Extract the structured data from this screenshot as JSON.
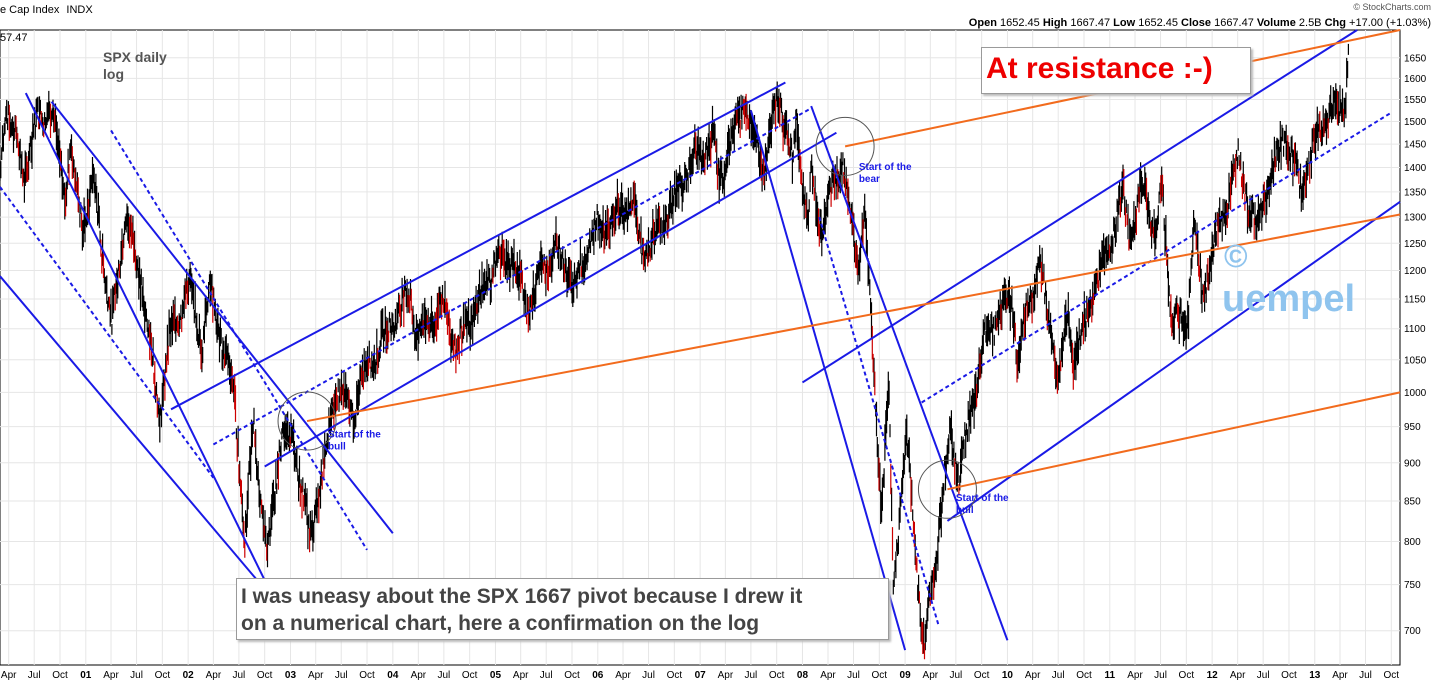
{
  "header": {
    "left_title": "e Cap Index",
    "left_symbol": "INDX",
    "left_value": "57.47",
    "watermark": "© StockCharts.com",
    "ohlc": {
      "open_label": "Open",
      "open": "1652.45",
      "high_label": "High",
      "high": "1667.47",
      "low_label": "Low",
      "low": "1652.45",
      "close_label": "Close",
      "close": "1667.47",
      "volume_label": "Volume",
      "volume": "2.5B",
      "chg_label": "Chg",
      "chg": "+17.00 (+1.03%)"
    }
  },
  "chart_title": {
    "line1": "SPX daily",
    "line2": "log"
  },
  "resistance_callout": "At resistance :-)",
  "bottom_callout": {
    "line1": "I was uneasy about the SPX 1667 pivot because I drew it",
    "line2": "on a numerical chart, here a confirmation on the log"
  },
  "copyright_mark": {
    "symbol": "©",
    "name": "uempel"
  },
  "colors": {
    "channel": "#1a1ae6",
    "resistance": "#f26b1d",
    "callout_red": "#ee0000",
    "watermark": "#8fc4ee",
    "price_bar": "#000000",
    "down_bar": "#cc0000",
    "grid": "#e6e6e6",
    "circle": "#555555"
  },
  "chart_data": {
    "type": "line",
    "title": "SPX daily log",
    "y_scale": "log",
    "ylim": [
      665,
      1720
    ],
    "y_ticks": [
      700,
      750,
      800,
      850,
      900,
      950,
      1000,
      1050,
      1100,
      1150,
      1200,
      1250,
      1300,
      1350,
      1400,
      1450,
      1500,
      1550,
      1600,
      1650
    ],
    "x_range": [
      "2000-03",
      "2013-11"
    ],
    "x_tick_labels": [
      {
        "label": "Apr",
        "date": "2000-04"
      },
      {
        "label": "Jul",
        "date": "2000-07"
      },
      {
        "label": "Oct",
        "date": "2000-10"
      },
      {
        "label": "01",
        "date": "2001-01",
        "year": true
      },
      {
        "label": "Apr",
        "date": "2001-04"
      },
      {
        "label": "Jul",
        "date": "2001-07"
      },
      {
        "label": "Oct",
        "date": "2001-10"
      },
      {
        "label": "02",
        "date": "2002-01",
        "year": true
      },
      {
        "label": "Apr",
        "date": "2002-04"
      },
      {
        "label": "Jul",
        "date": "2002-07"
      },
      {
        "label": "Oct",
        "date": "2002-10"
      },
      {
        "label": "03",
        "date": "2003-01",
        "year": true
      },
      {
        "label": "Apr",
        "date": "2003-04"
      },
      {
        "label": "Jul",
        "date": "2003-07"
      },
      {
        "label": "Oct",
        "date": "2003-10"
      },
      {
        "label": "04",
        "date": "2004-01",
        "year": true
      },
      {
        "label": "Apr",
        "date": "2004-04"
      },
      {
        "label": "Jul",
        "date": "2004-07"
      },
      {
        "label": "Oct",
        "date": "2004-10"
      },
      {
        "label": "05",
        "date": "2005-01",
        "year": true
      },
      {
        "label": "Apr",
        "date": "2005-04"
      },
      {
        "label": "Jul",
        "date": "2005-07"
      },
      {
        "label": "Oct",
        "date": "2005-10"
      },
      {
        "label": "06",
        "date": "2006-01",
        "year": true
      },
      {
        "label": "Apr",
        "date": "2006-04"
      },
      {
        "label": "Jul",
        "date": "2006-07"
      },
      {
        "label": "Oct",
        "date": "2006-10"
      },
      {
        "label": "07",
        "date": "2007-01",
        "year": true
      },
      {
        "label": "Apr",
        "date": "2007-04"
      },
      {
        "label": "Jul",
        "date": "2007-07"
      },
      {
        "label": "Oct",
        "date": "2007-10"
      },
      {
        "label": "08",
        "date": "2008-01",
        "year": true
      },
      {
        "label": "Apr",
        "date": "2008-04"
      },
      {
        "label": "Jul",
        "date": "2008-07"
      },
      {
        "label": "Oct",
        "date": "2008-10"
      },
      {
        "label": "09",
        "date": "2009-01",
        "year": true
      },
      {
        "label": "Apr",
        "date": "2009-04"
      },
      {
        "label": "Jul",
        "date": "2009-07"
      },
      {
        "label": "Oct",
        "date": "2009-10"
      },
      {
        "label": "10",
        "date": "2010-01",
        "year": true
      },
      {
        "label": "Apr",
        "date": "2010-04"
      },
      {
        "label": "Jul",
        "date": "2010-07"
      },
      {
        "label": "Oct",
        "date": "2010-10"
      },
      {
        "label": "11",
        "date": "2011-01",
        "year": true
      },
      {
        "label": "Apr",
        "date": "2011-04"
      },
      {
        "label": "Jul",
        "date": "2011-07"
      },
      {
        "label": "Oct",
        "date": "2011-10"
      },
      {
        "label": "12",
        "date": "2012-01",
        "year": true
      },
      {
        "label": "Apr",
        "date": "2012-04"
      },
      {
        "label": "Jul",
        "date": "2012-07"
      },
      {
        "label": "Oct",
        "date": "2012-10"
      },
      {
        "label": "13",
        "date": "2013-01",
        "year": true
      },
      {
        "label": "Apr",
        "date": "2013-04"
      },
      {
        "label": "Jul",
        "date": "2013-07"
      },
      {
        "label": "Oct",
        "date": "2013-10"
      }
    ],
    "series": [
      {
        "values": [
          [
            "2000-03-01",
            1390
          ],
          [
            "2000-03-24",
            1540
          ],
          [
            "2000-05-25",
            1380
          ],
          [
            "2000-07-15",
            1510
          ],
          [
            "2000-09-01",
            1525
          ],
          [
            "2000-10-18",
            1350
          ],
          [
            "2000-11-06",
            1430
          ],
          [
            "2000-12-20",
            1290
          ],
          [
            "2001-01-30",
            1370
          ],
          [
            "2001-04-04",
            1100
          ],
          [
            "2001-05-21",
            1310
          ],
          [
            "2001-07-20",
            1180
          ],
          [
            "2001-09-21",
            965
          ],
          [
            "2001-10-25",
            1080
          ],
          [
            "2002-01-04",
            1172
          ],
          [
            "2002-02-20",
            1080
          ],
          [
            "2002-03-19",
            1170
          ],
          [
            "2002-05-01",
            1080
          ],
          [
            "2002-06-15",
            1000
          ],
          [
            "2002-07-23",
            797
          ],
          [
            "2002-08-22",
            962
          ],
          [
            "2002-10-09",
            777
          ],
          [
            "2002-11-27",
            938
          ],
          [
            "2003-01-14",
            931
          ],
          [
            "2003-03-11",
            800
          ],
          [
            "2003-06-17",
            1010
          ],
          [
            "2003-08-05",
            965
          ],
          [
            "2003-10-01",
            1040
          ],
          [
            "2003-12-31",
            1112
          ],
          [
            "2004-03-05",
            1157
          ],
          [
            "2004-03-24",
            1090
          ],
          [
            "2004-06-30",
            1140
          ],
          [
            "2004-08-13",
            1064
          ],
          [
            "2004-12-30",
            1213
          ],
          [
            "2005-03-07",
            1225
          ],
          [
            "2005-04-20",
            1137
          ],
          [
            "2005-08-01",
            1245
          ],
          [
            "2005-10-13",
            1177
          ],
          [
            "2005-12-14",
            1272
          ],
          [
            "2006-05-05",
            1326
          ],
          [
            "2006-06-13",
            1223
          ],
          [
            "2006-10-02",
            1335
          ],
          [
            "2006-12-15",
            1427
          ],
          [
            "2007-02-21",
            1460
          ],
          [
            "2007-03-05",
            1374
          ],
          [
            "2007-06-04",
            1539
          ],
          [
            "2007-08-16",
            1406
          ],
          [
            "2007-10-09",
            1565
          ],
          [
            "2007-11-26",
            1407
          ],
          [
            "2007-12-10",
            1515
          ],
          [
            "2008-01-22",
            1270
          ],
          [
            "2008-02-01",
            1395
          ],
          [
            "2008-03-10",
            1273
          ],
          [
            "2008-05-19",
            1426
          ],
          [
            "2008-07-15",
            1214
          ],
          [
            "2008-08-11",
            1305
          ],
          [
            "2008-10-10",
            839
          ],
          [
            "2008-11-04",
            1005
          ],
          [
            "2008-11-20",
            752
          ],
          [
            "2009-01-06",
            934
          ],
          [
            "2009-03-09",
            677
          ],
          [
            "2009-06-12",
            946
          ],
          [
            "2009-07-10",
            879
          ],
          [
            "2009-10-19",
            1097
          ],
          [
            "2010-01-19",
            1150
          ],
          [
            "2010-02-05",
            1056
          ],
          [
            "2010-04-23",
            1217
          ],
          [
            "2010-07-02",
            1022
          ],
          [
            "2010-08-09",
            1127
          ],
          [
            "2010-08-26",
            1047
          ],
          [
            "2011-02-18",
            1343
          ],
          [
            "2011-03-16",
            1256
          ],
          [
            "2011-04-29",
            1364
          ],
          [
            "2011-06-16",
            1265
          ],
          [
            "2011-07-07",
            1356
          ],
          [
            "2011-08-08",
            1119
          ],
          [
            "2011-10-03",
            1099
          ],
          [
            "2011-10-27",
            1284
          ],
          [
            "2011-11-25",
            1158
          ],
          [
            "2012-04-02",
            1419
          ],
          [
            "2012-06-04",
            1278
          ],
          [
            "2012-09-14",
            1474
          ],
          [
            "2012-11-15",
            1353
          ],
          [
            "2013-01-30",
            1508
          ],
          [
            "2013-04-18",
            1541
          ],
          [
            "2013-05-03",
            1667
          ]
        ]
      }
    ],
    "trendlines": [
      {
        "color": "channel",
        "style": "solid",
        "points": [
          [
            "2000-06-01",
            1565
          ],
          [
            "2002-10-01",
            755
          ]
        ]
      },
      {
        "color": "channel",
        "style": "solid",
        "points": [
          [
            "2000-09-01",
            1545
          ],
          [
            "2004-01-01",
            810
          ]
        ]
      },
      {
        "color": "channel",
        "style": "dashed",
        "points": [
          [
            "2001-04-01",
            1480
          ],
          [
            "2003-10-01",
            790
          ]
        ]
      },
      {
        "color": "channel",
        "style": "dashed",
        "points": [
          [
            "2000-03-01",
            1360
          ],
          [
            "2002-04-01",
            880
          ]
        ]
      },
      {
        "color": "channel",
        "style": "solid",
        "points": [
          [
            "2000-03-01",
            1190
          ],
          [
            "2002-10-01",
            745
          ]
        ]
      },
      {
        "color": "channel",
        "style": "dashed",
        "points": [
          [
            "2002-04-01",
            925
          ],
          [
            "2008-02-01",
            1530
          ]
        ]
      },
      {
        "color": "channel",
        "style": "solid",
        "points": [
          [
            "2001-11-01",
            975
          ],
          [
            "2007-11-01",
            1590
          ]
        ]
      },
      {
        "color": "channel",
        "style": "solid",
        "points": [
          [
            "2002-10-01",
            895
          ],
          [
            "2008-05-01",
            1475
          ]
        ]
      },
      {
        "color": "channel",
        "style": "solid",
        "points": [
          [
            "2007-07-01",
            1525
          ],
          [
            "2009-01-01",
            680
          ]
        ]
      },
      {
        "color": "channel",
        "style": "solid",
        "points": [
          [
            "2008-02-01",
            1535
          ],
          [
            "2010-01-01",
            690
          ]
        ]
      },
      {
        "color": "channel",
        "style": "dashed",
        "points": [
          [
            "2008-03-01",
            1300
          ],
          [
            "2009-05-01",
            705
          ]
        ]
      },
      {
        "color": "channel",
        "style": "solid",
        "points": [
          [
            "2008-01-01",
            1015
          ],
          [
            "2013-06-01",
            1720
          ]
        ]
      },
      {
        "color": "channel",
        "style": "dashed",
        "points": [
          [
            "2009-03-01",
            985
          ],
          [
            "2013-10-01",
            1520
          ]
        ]
      },
      {
        "color": "channel",
        "style": "solid",
        "points": [
          [
            "2009-06-01",
            825
          ],
          [
            "2013-11-01",
            1330
          ]
        ]
      },
      {
        "color": "resistance",
        "style": "solid",
        "points": [
          [
            "2003-03-01",
            958
          ],
          [
            "2013-11-01",
            1305
          ]
        ]
      },
      {
        "color": "resistance",
        "style": "solid",
        "points": [
          [
            "2008-06-01",
            1445
          ],
          [
            "2013-11-01",
            1720
          ]
        ]
      },
      {
        "color": "resistance",
        "style": "solid",
        "points": [
          [
            "2009-06-01",
            865
          ],
          [
            "2013-11-01",
            1000
          ]
        ]
      }
    ],
    "highlight_circles": [
      {
        "date": "2003-03-01",
        "value": 958
      },
      {
        "date": "2008-06-01",
        "value": 1445
      },
      {
        "date": "2009-06-01",
        "value": 865
      }
    ],
    "annotations": [
      {
        "line1": "Start of the",
        "line2": "bull",
        "date": "2003-05-15",
        "value": 935
      },
      {
        "line1": "Start of the",
        "line2": "bear",
        "date": "2008-07-20",
        "value": 1395
      },
      {
        "line1": "Start of the",
        "line2": "bull",
        "date": "2009-07-01",
        "value": 850
      }
    ]
  }
}
